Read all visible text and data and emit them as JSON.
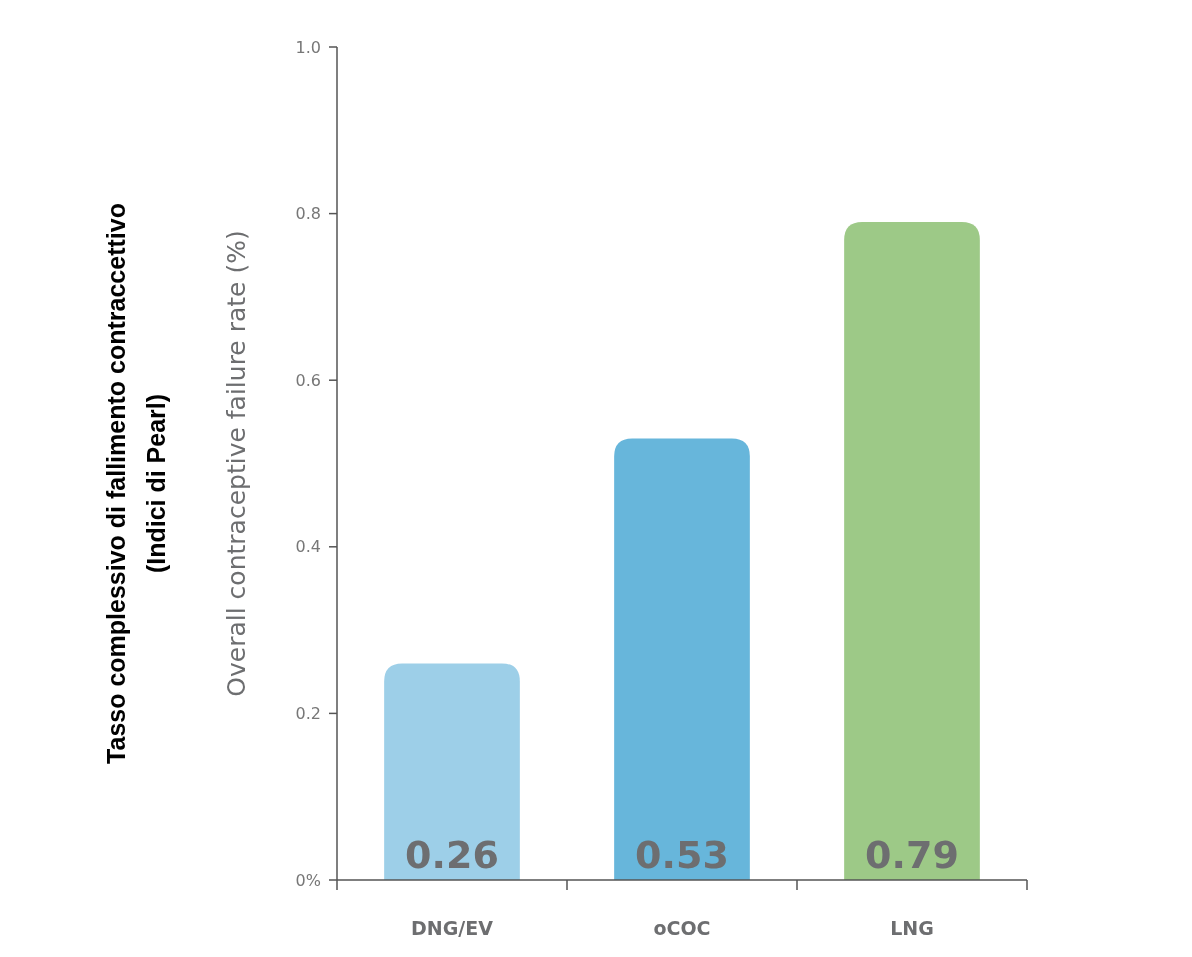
{
  "chart_data": {
    "type": "bar",
    "ylabel": "Overall contraceptive failure rate (%)",
    "annotations": [
      "Tasso complessivo di fallimento contraccettivo",
      "(Indici di Pearl)"
    ],
    "categories": [
      "DNG/EV",
      "oCOC",
      "LNG"
    ],
    "values": [
      0.26,
      0.53,
      0.79
    ],
    "colors": [
      "#9dcfe8",
      "#67b6db",
      "#9dc987"
    ],
    "ylim": [
      0,
      1
    ],
    "yticks": [
      {
        "value": 0,
        "label": "0%"
      },
      0.2,
      0.4,
      0.6,
      0.8,
      {
        "value": 1,
        "label": "1.0"
      }
    ],
    "data_labels": true
  }
}
